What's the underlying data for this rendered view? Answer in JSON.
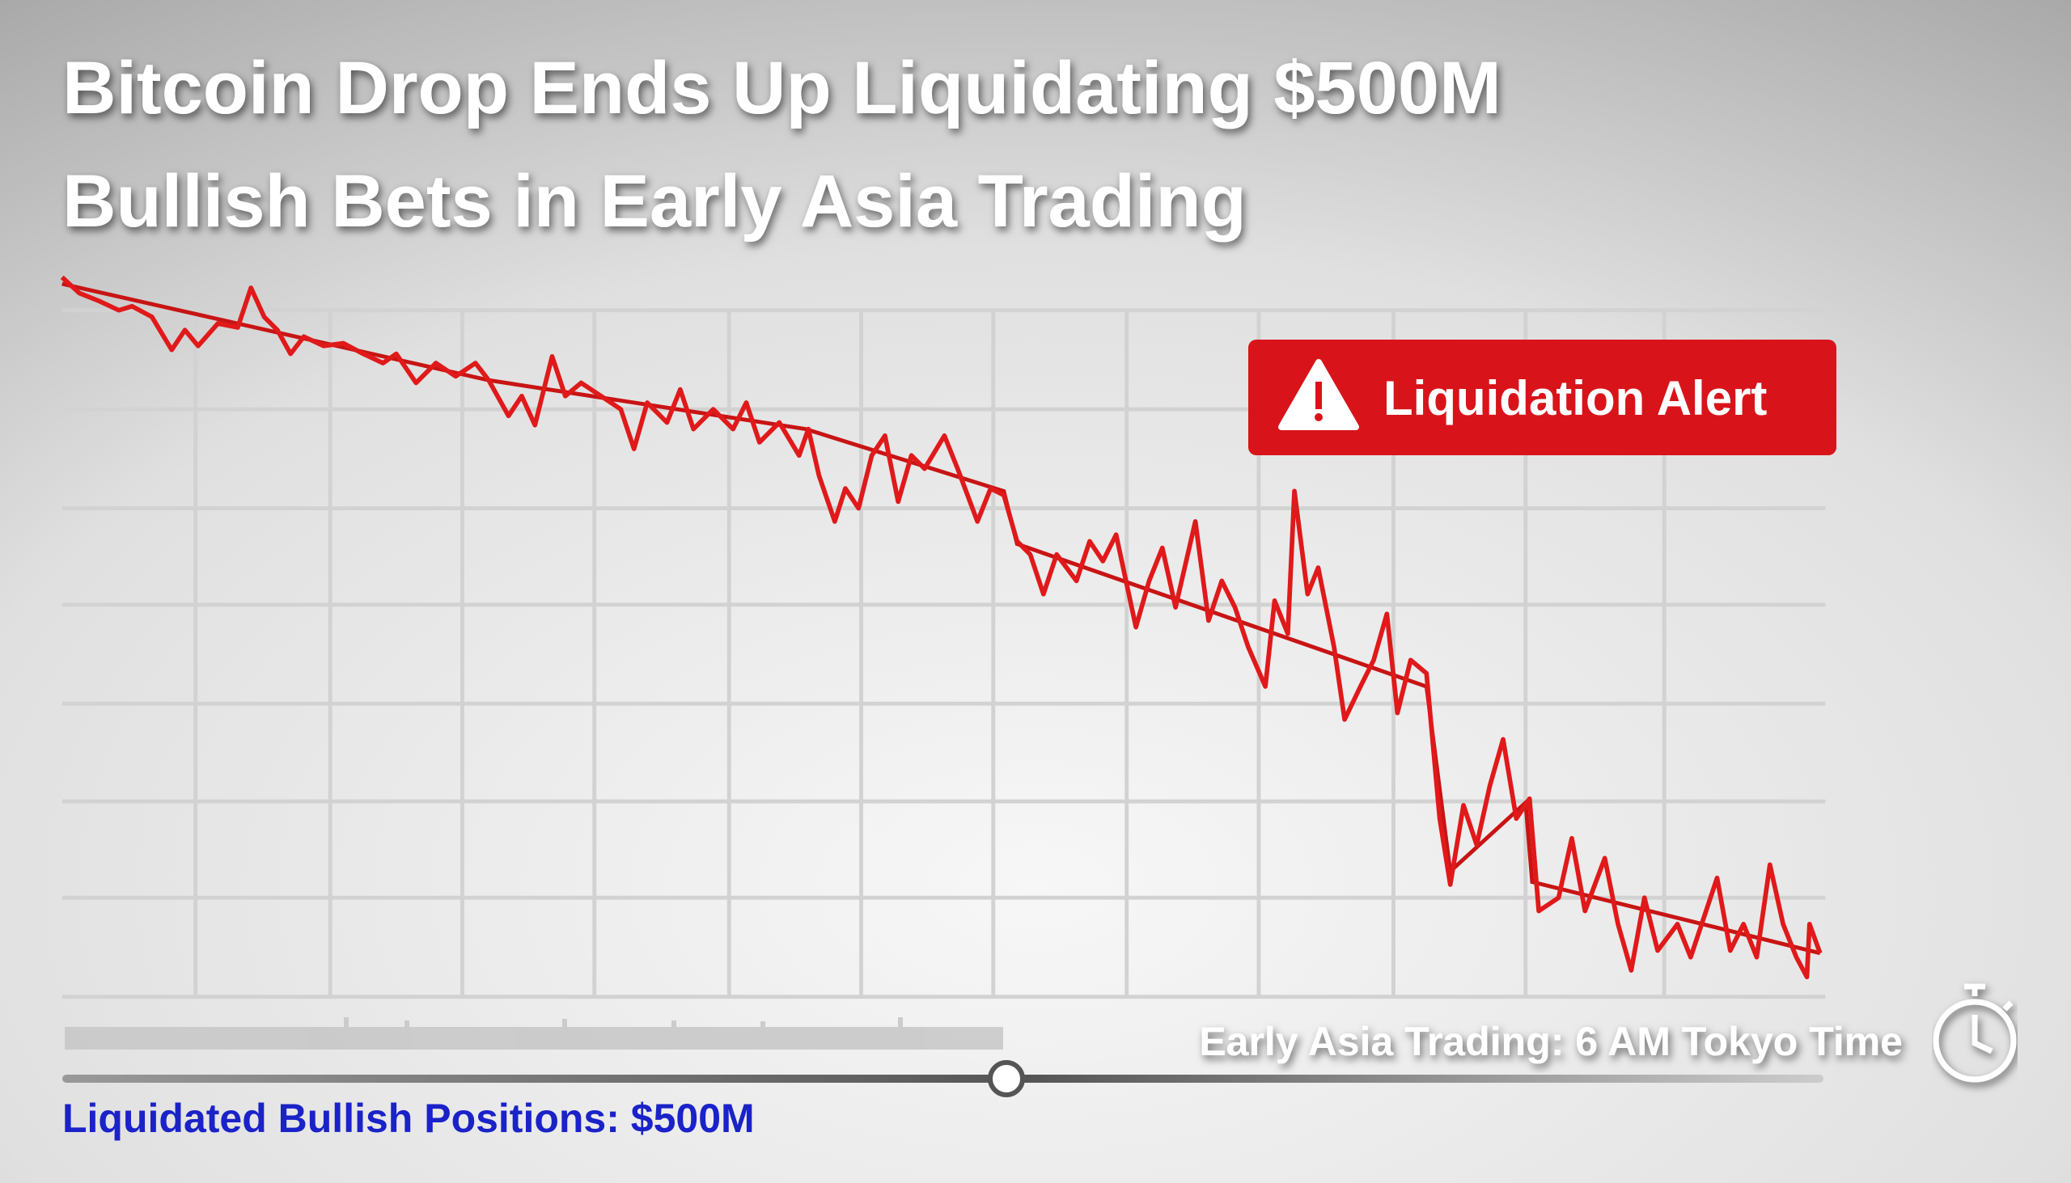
{
  "header": {
    "title_lines": [
      "Bitcoin Drop Ends Up Liquidating $500M",
      "Bullish Bets in Early Asia Trading"
    ]
  },
  "alert": {
    "label": "Liquidation Alert"
  },
  "footer": {
    "timestamp": "Early Asia Trading: 6 AM Tokyo Time",
    "caption": "Liquidated Bullish Positions: $500M"
  }
}
